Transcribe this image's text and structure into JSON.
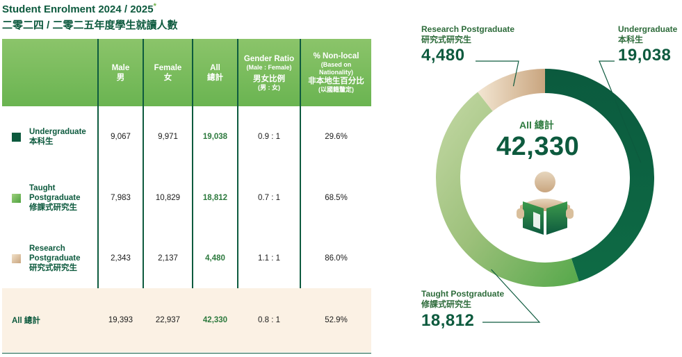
{
  "title": "Student Enrolment 2024 / 2025",
  "title_mark": "*",
  "subtitle": "二零二四 / 二零二五年度學生就讀人數",
  "table": {
    "headers": {
      "male_en": "Male",
      "male_zh": "男",
      "female_en": "Female",
      "female_zh": "女",
      "all_en": "All",
      "all_zh": "總計",
      "ratio_en": "Gender Ratio",
      "ratio_sub": "(Male : Female)",
      "ratio_zh": "男女比例",
      "ratio_zh_sub": "(男 : 女)",
      "nonlocal_en": "% Non-local",
      "nonlocal_sub1": "(Based on",
      "nonlocal_sub2": "Nationality)",
      "nonlocal_zh": "非本地生百分比",
      "nonlocal_zh_sub": "(以國籍釐定)"
    },
    "rows": [
      {
        "label_l1": "Undergraduate",
        "label_l2": "本科生",
        "label_l3": "",
        "color": "#0d5a3e",
        "male": "9,067",
        "female": "9,971",
        "all": "19,038",
        "ratio": "0.9 : 1",
        "nonlocal": "29.6%"
      },
      {
        "label_l1": "Taught",
        "label_l2": "Postgraduate",
        "label_l3": "修課式研究生",
        "color": "#6ab451",
        "male": "7,983",
        "female": "10,829",
        "all": "18,812",
        "ratio": "0.7 : 1",
        "nonlocal": "68.5%"
      },
      {
        "label_l1": "Research",
        "label_l2": "Postgraduate",
        "label_l3": "研究式研究生",
        "color": "#d9bf9c",
        "male": "2,343",
        "female": "2,137",
        "all": "4,480",
        "ratio": "1.1 : 1",
        "nonlocal": "86.0%"
      }
    ],
    "total": {
      "label": "All 總計",
      "male": "19,393",
      "female": "22,937",
      "all": "42,330",
      "ratio": "0.8 : 1",
      "nonlocal": "52.9%"
    }
  },
  "chart_data": {
    "type": "pie",
    "subtype": "donut",
    "categories": [
      "Undergraduate",
      "Taught Postgraduate",
      "Research Postgraduate"
    ],
    "values": [
      19038,
      18812,
      4480
    ],
    "colors": [
      "#0d5a3e",
      "#6ab451",
      "#d9bf9c"
    ],
    "total": 42330,
    "center_label": "All 總計",
    "center_value": "42,330",
    "callouts": {
      "undergrad": {
        "title_en": "Undergraduate",
        "title_zh": "本科生",
        "value": "19,038"
      },
      "research": {
        "title_en": "Research Postgraduate",
        "title_zh": "研究式研究生",
        "value": "4,480"
      },
      "taught": {
        "title_en": "Taught Postgraduate",
        "title_zh": "修課式研究生",
        "value": "18,812"
      }
    },
    "center_icon": "reading-person-icon"
  }
}
